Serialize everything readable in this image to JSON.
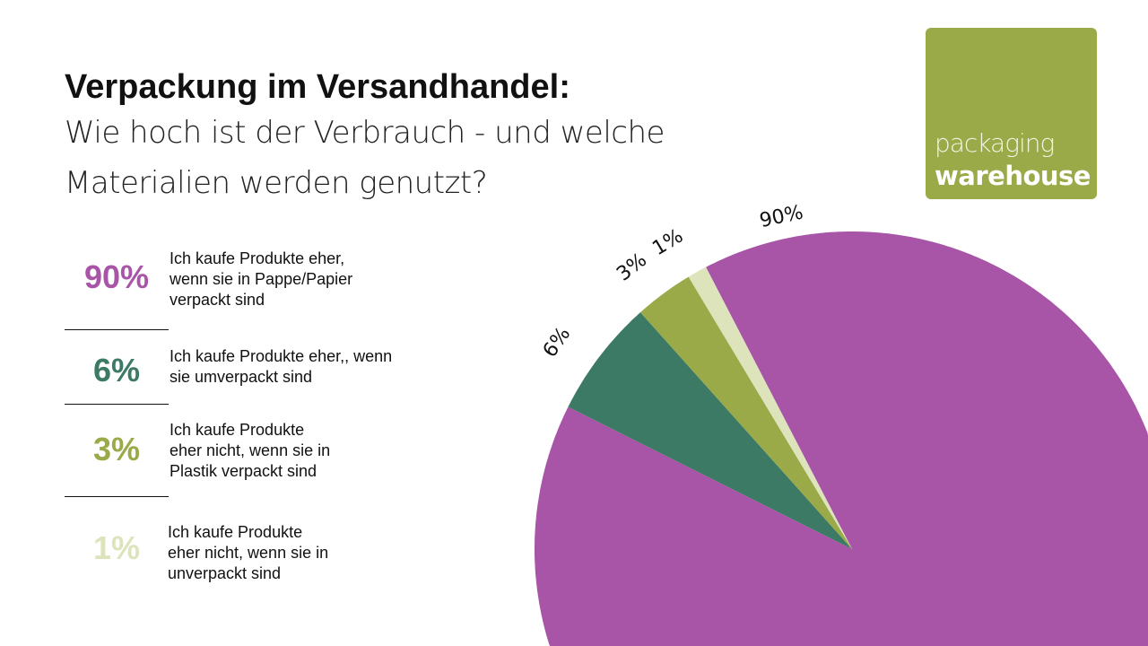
{
  "header": {
    "title": "Verpackung im Versandhandel:",
    "subtitle": "Wie hoch ist der Verbrauch - und welche Materialien werden genutzt?"
  },
  "logo": {
    "line1": "packaging",
    "line2": "warehouse",
    "color": "#9aaa48"
  },
  "chart_data": {
    "type": "pie",
    "title": "",
    "slices": [
      {
        "label": "90%",
        "value": 90,
        "description": "Ich kaufe Produkte eher, wenn sie in Pappe/Papier verpackt sind",
        "color": "#a855a8"
      },
      {
        "label": "6%",
        "value": 6,
        "description": "Ich kaufe Produkte eher,, wenn sie umverpackt sind",
        "color": "#3d7a65"
      },
      {
        "label": "3%",
        "value": 3,
        "description": "Ich kaufe Produkte eher nicht, wenn sie in Plastik verpackt sind",
        "color": "#9aaa48"
      },
      {
        "label": "1%",
        "value": 1,
        "description": "Ich kaufe Produkte eher nicht, wenn sie in unverpackt sind",
        "color": "#dde3bb"
      }
    ]
  }
}
